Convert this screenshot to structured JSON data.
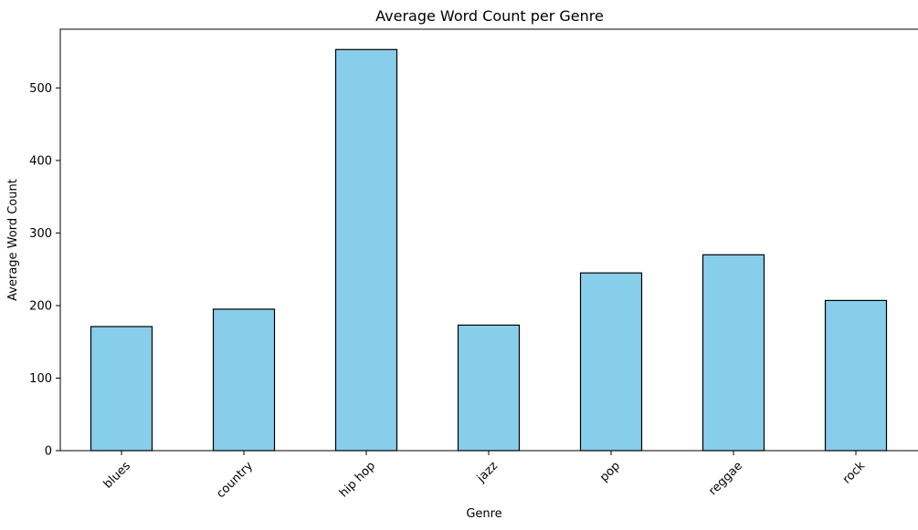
{
  "chart_data": {
    "type": "bar",
    "title": "Average Word Count per Genre",
    "xlabel": "Genre",
    "ylabel": "Average Word Count",
    "categories": [
      "blues",
      "country",
      "hip hop",
      "jazz",
      "pop",
      "reggae",
      "rock"
    ],
    "values": [
      171,
      195,
      553,
      173,
      245,
      270,
      207
    ],
    "ylim": [
      0,
      581
    ],
    "yticks": [
      0,
      100,
      200,
      300,
      400,
      500
    ],
    "ytick_labels": [
      "0",
      "100",
      "200",
      "300",
      "400",
      "500"
    ],
    "xtick_rotation": 45,
    "bar_color": "#87ceeb",
    "edge_color": "#000000",
    "grid": false,
    "legend": "none"
  }
}
